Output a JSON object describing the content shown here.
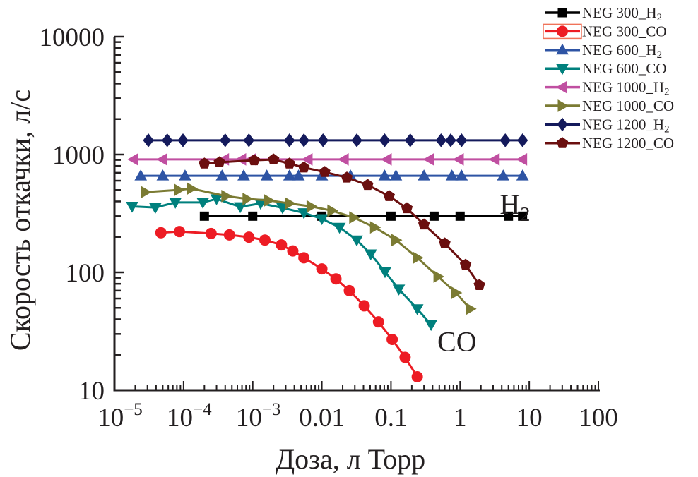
{
  "chart_data": {
    "type": "line",
    "title": "",
    "xlabel": "Доза, л Торр",
    "ylabel": "Скорость откачки, л/с",
    "xscale": "log",
    "yscale": "log",
    "xlim": [
      1e-05,
      100
    ],
    "ylim": [
      10,
      10000
    ],
    "grid": false,
    "legend_position": "top-right",
    "x_ticks": [
      {
        "value": 1e-05,
        "base": "10",
        "exp": "−5"
      },
      {
        "value": 0.0001,
        "base": "10",
        "exp": "−4"
      },
      {
        "value": 0.001,
        "base": "10",
        "exp": "−3"
      },
      {
        "value": 0.01,
        "base": "0.01",
        "exp": ""
      },
      {
        "value": 0.1,
        "base": "0.1",
        "exp": ""
      },
      {
        "value": 1,
        "base": "1",
        "exp": ""
      },
      {
        "value": 10,
        "base": "10",
        "exp": ""
      },
      {
        "value": 100,
        "base": "100",
        "exp": ""
      }
    ],
    "y_ticks": [
      {
        "value": 10,
        "label": "10"
      },
      {
        "value": 100,
        "label": "100"
      },
      {
        "value": 1000,
        "label": "1000"
      },
      {
        "value": 10000,
        "label": "10000"
      }
    ],
    "annotations": [
      {
        "text": "H",
        "sub": "2",
        "x": 6,
        "y": 380
      },
      {
        "text": "CO",
        "sub": "",
        "x": 0.75,
        "y": 26
      }
    ],
    "series": [
      {
        "name": "NEG 300_H",
        "name_sub": "2",
        "color": "#000000",
        "marker": "square",
        "legend_box": false,
        "x": [
          0.0002,
          0.001,
          0.01,
          0.1,
          0.42,
          1,
          5,
          8
        ],
        "y": [
          300,
          300,
          300,
          300,
          300,
          300,
          300,
          300
        ]
      },
      {
        "name": "NEG 300_CO",
        "name_sub": "",
        "color": "#ed1c24",
        "marker": "circle",
        "legend_box": true,
        "x": [
          4.7e-05,
          8.7e-05,
          0.00025,
          0.00046,
          0.00088,
          0.0015,
          0.0026,
          0.0038,
          0.0055,
          0.01,
          0.016,
          0.025,
          0.041,
          0.066,
          0.104,
          0.16,
          0.24
        ],
        "y": [
          217,
          222,
          214,
          208,
          199,
          188,
          171,
          152,
          133,
          107,
          88,
          70,
          52,
          38,
          27,
          19,
          13
        ]
      },
      {
        "name": "NEG 600_H",
        "name_sub": "2",
        "color": "#2e54a4",
        "marker": "triangle-up",
        "legend_box": false,
        "x": [
          2.4e-05,
          5e-05,
          0.000105,
          0.00036,
          0.00074,
          0.0016,
          0.0034,
          0.0046,
          0.01,
          0.026,
          0.081,
          0.118,
          0.3,
          0.76,
          1.05,
          4.2,
          8
        ],
        "y": [
          660,
          660,
          660,
          660,
          660,
          660,
          660,
          660,
          660,
          660,
          660,
          660,
          660,
          660,
          660,
          660,
          660
        ]
      },
      {
        "name": "NEG 600_CO",
        "name_sub": "",
        "color": "#00807d",
        "marker": "triangle-down",
        "legend_box": false,
        "x": [
          1.8e-05,
          3.9e-05,
          7.6e-05,
          0.00019,
          0.0003,
          0.00066,
          0.0013,
          0.0027,
          0.0055,
          0.01,
          0.018,
          0.032,
          0.051,
          0.082,
          0.13,
          0.24,
          0.38
        ],
        "y": [
          363,
          355,
          392,
          392,
          420,
          360,
          385,
          353,
          320,
          285,
          241,
          188,
          143,
          101,
          72,
          49,
          36
        ]
      },
      {
        "name": "NEG 1000_H",
        "name_sub": "2",
        "color": "#c04fa1",
        "marker": "triangle-left",
        "legend_box": false,
        "x": [
          1.9e-05,
          5e-05,
          0.00039,
          0.00069,
          0.00096,
          0.0063,
          0.021,
          0.088,
          0.36,
          0.97,
          3.2,
          8
        ],
        "y": [
          910,
          910,
          910,
          910,
          910,
          910,
          910,
          910,
          910,
          910,
          910,
          910
        ]
      },
      {
        "name": "NEG 1000_CO",
        "name_sub": "",
        "color": "#7b7b33",
        "marker": "triangle-right",
        "legend_box": false,
        "x": [
          2.8e-05,
          8.5e-05,
          0.00013,
          0.00041,
          0.00083,
          0.0017,
          0.0034,
          0.007,
          0.014,
          0.029,
          0.058,
          0.118,
          0.24,
          0.48,
          0.87,
          1.4
        ],
        "y": [
          480,
          501,
          514,
          444,
          420,
          408,
          385,
          363,
          334,
          292,
          241,
          188,
          133,
          92,
          67,
          49
        ]
      },
      {
        "name": "NEG 1200_H",
        "name_sub": "2",
        "color": "#141a5c",
        "marker": "diamond",
        "legend_box": false,
        "x": [
          3.1e-05,
          5.8e-05,
          9.8e-05,
          0.0004,
          0.00088,
          0.0034,
          0.0055,
          0.0104,
          0.032,
          0.081,
          0.19,
          0.53,
          0.73,
          1.05,
          4.5,
          8
        ],
        "y": [
          1320,
          1320,
          1320,
          1320,
          1320,
          1320,
          1320,
          1320,
          1320,
          1320,
          1320,
          1320,
          1320,
          1320,
          1320,
          1320
        ]
      },
      {
        "name": "NEG 1200_CO",
        "name_sub": "",
        "color": "#6b0f0f",
        "marker": "pentagon",
        "legend_box": false,
        "x": [
          0.0002,
          0.00033,
          0.00105,
          0.002,
          0.0034,
          0.0055,
          0.011,
          0.023,
          0.046,
          0.094,
          0.17,
          0.3,
          0.6,
          1.2,
          1.9
        ],
        "y": [
          838,
          859,
          894,
          908,
          838,
          776,
          710,
          637,
          552,
          444,
          350,
          255,
          176,
          116,
          78
        ]
      }
    ]
  }
}
